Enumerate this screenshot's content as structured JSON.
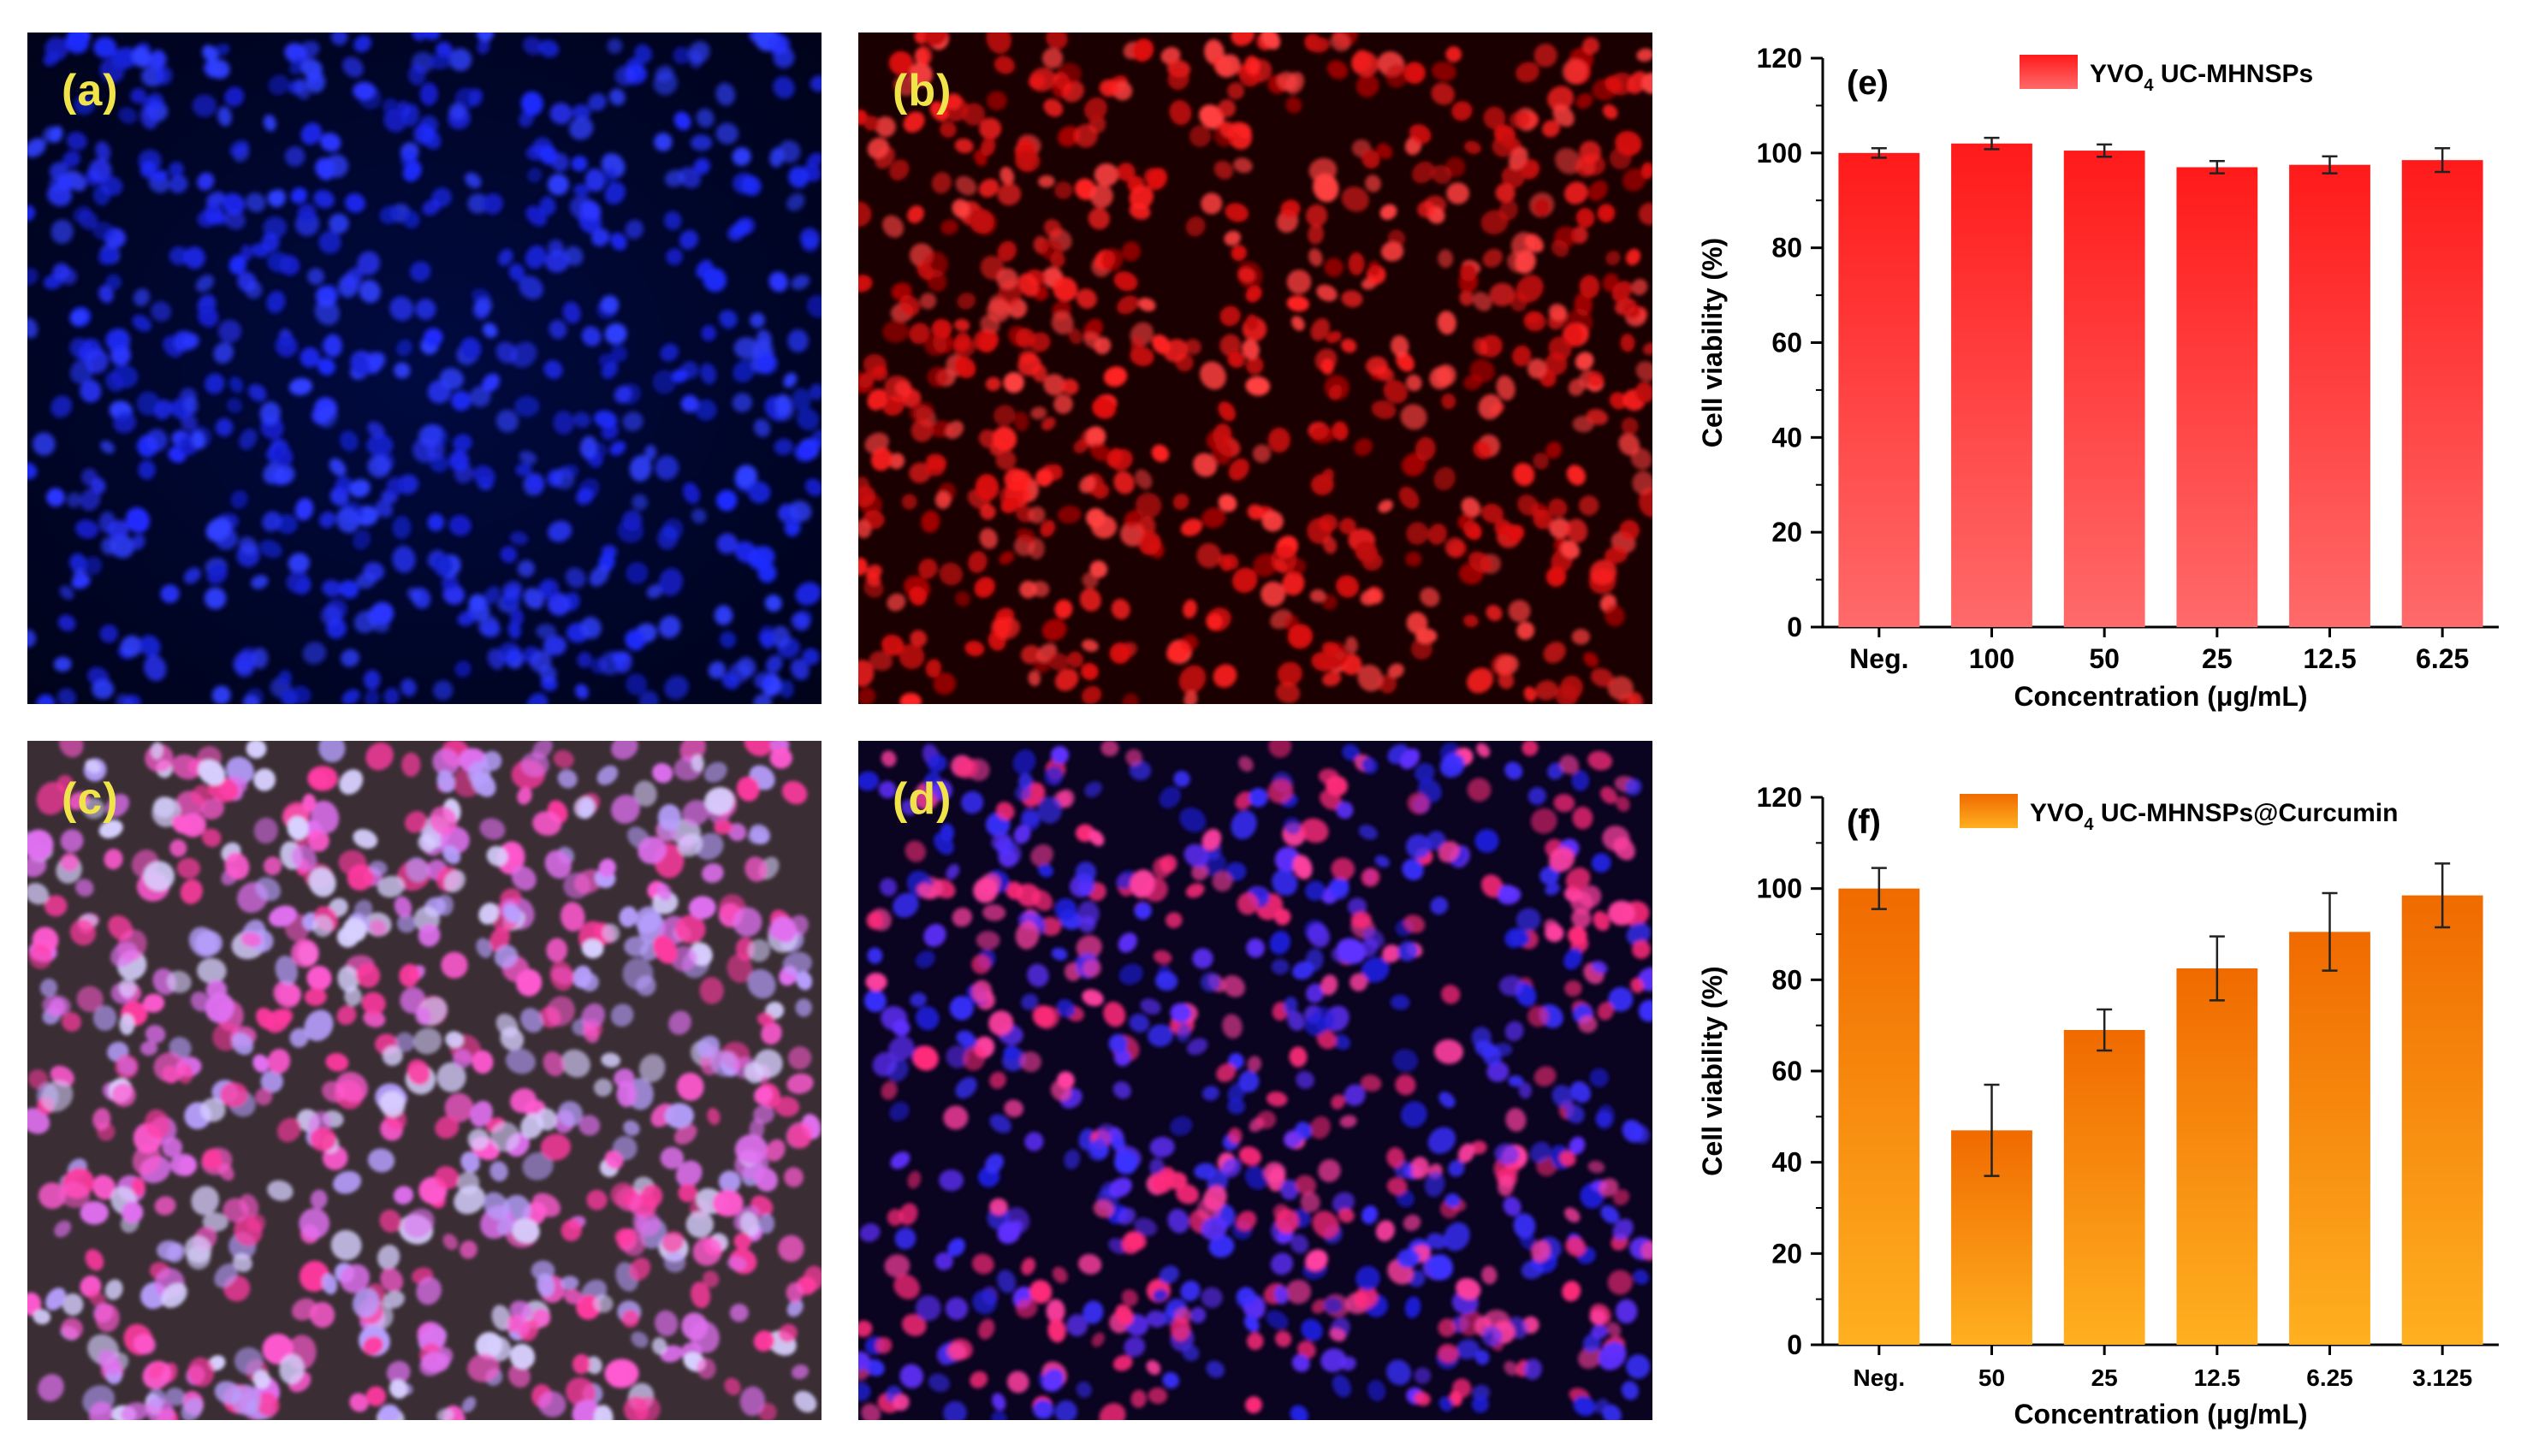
{
  "panels": {
    "a": {
      "label": "(a)",
      "stain": "blue-nuclei"
    },
    "b": {
      "label": "(b)",
      "stain": "red-particles"
    },
    "c": {
      "label": "(c)",
      "stain": "brightfield-merge"
    },
    "d": {
      "label": "(d)",
      "stain": "merge"
    }
  },
  "colors": {
    "nuclei_blue": "#1f2bff",
    "particle_red": "#ff2020",
    "label_yellow": "#f1e44a",
    "bar_red_top": "#ff1a1a",
    "bar_red_bottom": "#ff6a6a",
    "bar_orange_top": "#f06a00",
    "bar_orange_bottom": "#ffb020"
  },
  "chart_data": [
    {
      "type": "bar",
      "panel_label": "(e)",
      "legend": "YVO4 UC-MHNSPs",
      "legend_main": "YVO",
      "legend_sub": "4",
      "legend_rest": " UC-MHNSPs",
      "categories": [
        "Neg.",
        "100",
        "50",
        "25",
        "12.5",
        "6.25"
      ],
      "values": [
        100,
        102,
        100.5,
        97,
        97.5,
        98.5
      ],
      "errors": [
        1,
        1.2,
        1.3,
        1.3,
        1.8,
        2.5
      ],
      "xlabel": "Concentration (μg/mL)",
      "ylabel": "Cell viability (%)",
      "ylim": [
        0,
        120
      ],
      "yticks": [
        "0",
        "20",
        "40",
        "60",
        "80",
        "100",
        "120"
      ],
      "legend_position": "top-center"
    },
    {
      "type": "bar",
      "panel_label": "(f)",
      "legend": "YVO4 UC-MHNSPs@Curcumin",
      "legend_main": "YVO",
      "legend_sub": "4",
      "legend_rest": " UC-MHNSPs@Curcumin",
      "categories": [
        "Neg.",
        "50",
        "25",
        "12.5",
        "6.25",
        "3.125"
      ],
      "values": [
        100,
        47,
        69,
        82.5,
        90.5,
        98.5
      ],
      "errors": [
        4.5,
        10,
        4.5,
        7,
        8.5,
        7
      ],
      "xlabel": "Concentration (μg/mL)",
      "ylabel": "Cell viability (%)",
      "ylim": [
        0,
        120
      ],
      "yticks": [
        "0",
        "20",
        "40",
        "60",
        "80",
        "100",
        "120"
      ],
      "legend_position": "top-center"
    }
  ]
}
